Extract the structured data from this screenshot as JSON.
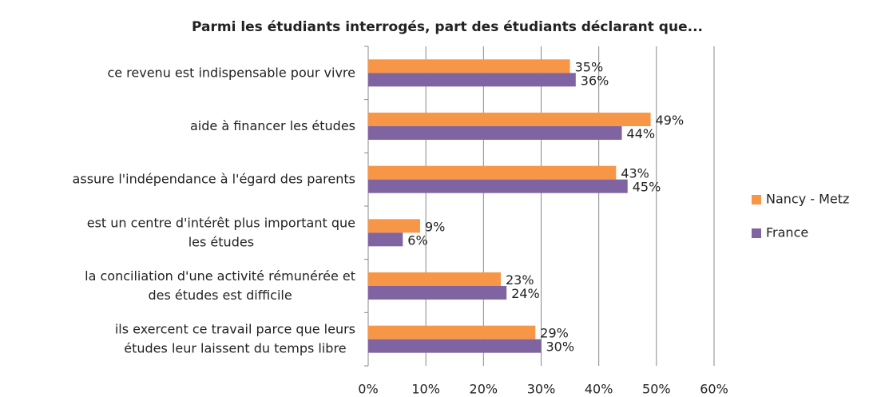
{
  "chart_data": {
    "type": "bar",
    "orientation": "horizontal",
    "title": "Parmi les étudiants interrogés, part des étudiants déclarant que...",
    "categories": [
      "ce revenu est indispensable pour vivre",
      "aide à financer les études",
      "assure l'indépendance à l'égard des parents",
      "est un centre d'intérêt plus important que les études",
      "la conciliation d'une activité rémunérée et des études est difficile",
      "ils exercent ce travail parce que leurs études leur laissent du temps libre"
    ],
    "series": [
      {
        "name": "Nancy - Metz",
        "color": "#f79646",
        "values": [
          35,
          49,
          43,
          9,
          23,
          29
        ],
        "value_labels": [
          "35%",
          "49%",
          "43%",
          "9%",
          "23%",
          "29%"
        ]
      },
      {
        "name": "France",
        "color": "#8064a2",
        "values": [
          36,
          44,
          45,
          6,
          24,
          30
        ],
        "value_labels": [
          "36%",
          "44%",
          "45%",
          "6%",
          "24%",
          "30%"
        ]
      }
    ],
    "xlim": [
      0,
      60
    ],
    "xticks": [
      {
        "value": 0,
        "label": "0%"
      },
      {
        "value": 10,
        "label": "10%"
      },
      {
        "value": 20,
        "label": "20%"
      },
      {
        "value": 30,
        "label": "30%"
      },
      {
        "value": 40,
        "label": "40%"
      },
      {
        "value": 50,
        "label": "50%"
      },
      {
        "value": 60,
        "label": "60%"
      }
    ],
    "grid": true,
    "legend": "right"
  }
}
